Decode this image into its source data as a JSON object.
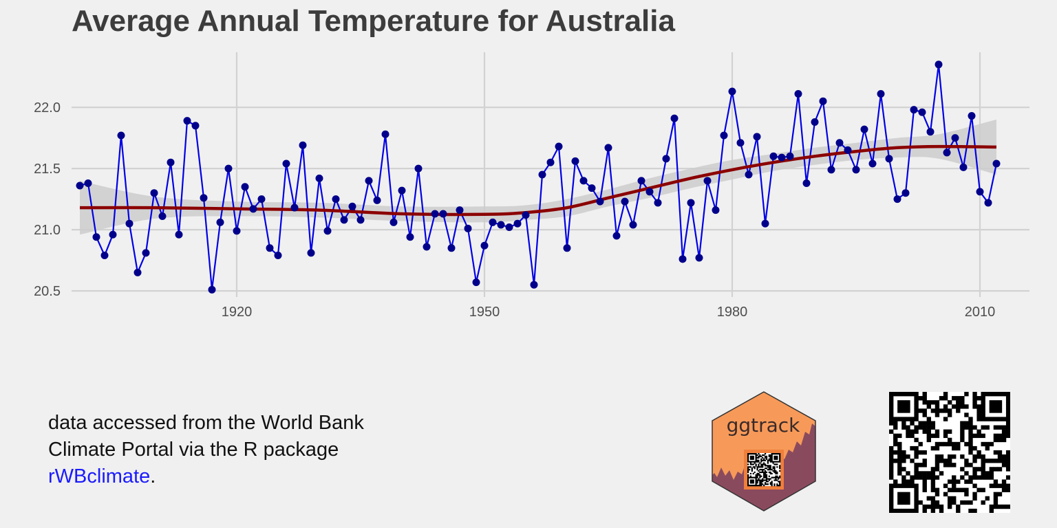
{
  "chart_data": {
    "type": "line",
    "title": "Average Annual Temperature for Australia",
    "xlabel": "",
    "ylabel": "",
    "xlim": [
      1900,
      2016
    ],
    "ylim": [
      20.45,
      22.45
    ],
    "xticks": [
      1920,
      1950,
      1980,
      2010
    ],
    "yticks": [
      20.5,
      21.0,
      21.5,
      22.0
    ],
    "ytick_labels": [
      "20.5",
      "21.0",
      "21.5",
      "22.0"
    ],
    "grid": true,
    "legend": "none",
    "series": [
      {
        "style": "line+points",
        "line_color": "#0000e6",
        "point_color": "#00008b",
        "x": [
          1901,
          1902,
          1903,
          1904,
          1905,
          1906,
          1907,
          1908,
          1909,
          1910,
          1911,
          1912,
          1913,
          1914,
          1915,
          1916,
          1917,
          1918,
          1919,
          1920,
          1921,
          1922,
          1923,
          1924,
          1925,
          1926,
          1927,
          1928,
          1929,
          1930,
          1931,
          1932,
          1933,
          1934,
          1935,
          1936,
          1937,
          1938,
          1939,
          1940,
          1941,
          1942,
          1943,
          1944,
          1945,
          1946,
          1947,
          1948,
          1949,
          1950,
          1951,
          1952,
          1953,
          1954,
          1955,
          1956,
          1957,
          1958,
          1959,
          1960,
          1961,
          1962,
          1963,
          1964,
          1965,
          1966,
          1967,
          1968,
          1969,
          1970,
          1971,
          1972,
          1973,
          1974,
          1975,
          1976,
          1977,
          1978,
          1979,
          1980,
          1981,
          1982,
          1983,
          1984,
          1985,
          1986,
          1987,
          1988,
          1989,
          1990,
          1991,
          1992,
          1993,
          1994,
          1995,
          1996,
          1997,
          1998,
          1999,
          2000,
          2001,
          2002,
          2003,
          2004,
          2005,
          2006,
          2007,
          2008,
          2009,
          2010,
          2011,
          2012
        ],
        "y": [
          21.36,
          21.38,
          20.94,
          20.79,
          20.96,
          21.77,
          21.05,
          20.65,
          20.81,
          21.3,
          21.11,
          21.55,
          20.96,
          21.89,
          21.85,
          21.26,
          20.51,
          21.06,
          21.5,
          20.99,
          21.35,
          21.17,
          21.25,
          20.85,
          20.79,
          21.54,
          21.18,
          21.69,
          20.81,
          21.42,
          20.99,
          21.25,
          21.08,
          21.19,
          21.08,
          21.4,
          21.24,
          21.78,
          21.06,
          21.32,
          20.94,
          21.5,
          20.86,
          21.13,
          21.13,
          20.85,
          21.16,
          21.01,
          20.57,
          20.87,
          21.06,
          21.04,
          21.02,
          21.05,
          21.12,
          20.55,
          21.45,
          21.55,
          21.68,
          20.85,
          21.56,
          21.4,
          21.34,
          21.23,
          21.67,
          20.95,
          21.23,
          21.04,
          21.4,
          21.31,
          21.22,
          21.58,
          21.91,
          20.76,
          21.22,
          20.77,
          21.4,
          21.16,
          21.77,
          22.13,
          21.71,
          21.45,
          21.76,
          21.05,
          21.6,
          21.59,
          21.6,
          22.11,
          21.38,
          21.88,
          22.05,
          21.49,
          21.71,
          21.65,
          21.49,
          21.82,
          21.54,
          22.11,
          21.58,
          21.25,
          21.3,
          21.98,
          21.96,
          21.8,
          22.35,
          21.63,
          21.75,
          21.51,
          21.93,
          21.31,
          21.22,
          21.54
        ]
      },
      {
        "style": "smooth",
        "color": "#8b0000",
        "ribbon_color": "#cccccc",
        "x": [
          1901,
          1910,
          1920,
          1930,
          1940,
          1950,
          1955,
          1960,
          1965,
          1970,
          1975,
          1980,
          1985,
          1990,
          1995,
          2000,
          2005,
          2012
        ],
        "y": [
          21.18,
          21.18,
          21.17,
          21.16,
          21.13,
          21.125,
          21.14,
          21.18,
          21.26,
          21.34,
          21.42,
          21.49,
          21.55,
          21.6,
          21.64,
          21.67,
          21.68,
          21.675
        ],
        "ribbon_lower": [
          20.96,
          21.09,
          21.11,
          21.1,
          21.07,
          21.06,
          21.08,
          21.11,
          21.19,
          21.26,
          21.34,
          21.41,
          21.48,
          21.53,
          21.57,
          21.59,
          21.58,
          21.45
        ],
        "ribbon_upper": [
          21.4,
          21.27,
          21.23,
          21.22,
          21.19,
          21.19,
          21.2,
          21.25,
          21.33,
          21.42,
          21.5,
          21.57,
          21.62,
          21.67,
          21.71,
          21.75,
          21.78,
          21.9
        ]
      }
    ]
  },
  "note": {
    "line1": "data accessed from the World Bank",
    "line2": "Climate Portal via the R package",
    "link_text": "rWBclimate",
    "link_suffix": "."
  },
  "badge": {
    "label": "ggtrack",
    "fill": "#f79a59",
    "dark_fill": "#8a4a5e"
  }
}
